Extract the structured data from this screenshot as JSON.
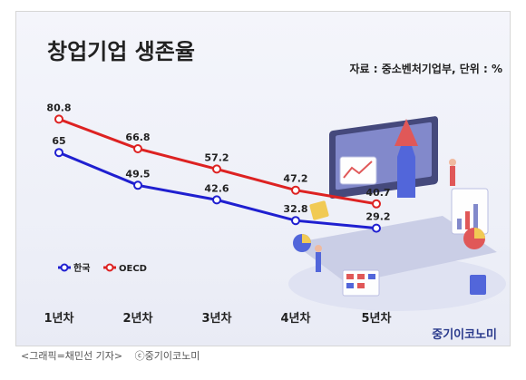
{
  "chart_data": {
    "type": "line",
    "title": "창업기업 생존율",
    "source_note": "자료 : 중소벤처기업부, 단위 : %",
    "categories": [
      "1년차",
      "2년차",
      "3년차",
      "4년차",
      "5년차"
    ],
    "series": [
      {
        "name": "한국",
        "color": "#1f1fd0",
        "values": [
          65,
          49.5,
          42.6,
          32.8,
          29.2
        ]
      },
      {
        "name": "OECD",
        "color": "#dd2222",
        "values": [
          80.8,
          66.8,
          57.2,
          47.2,
          40.7
        ]
      }
    ],
    "value_labels": {
      "한국": [
        "65",
        "49.5",
        "42.6",
        "32.8",
        "29.2"
      ],
      "OECD": [
        "80.8",
        "66.8",
        "57.2",
        "47.2",
        "40.7"
      ]
    },
    "ylim": [
      20,
      90
    ],
    "grid": false,
    "legend_position": "bottom-left"
  },
  "brand": "중기이코노미",
  "caption": {
    "credit": "<그래픽=채민선 기자>",
    "copyright": "ⓒ중기이코노미"
  }
}
